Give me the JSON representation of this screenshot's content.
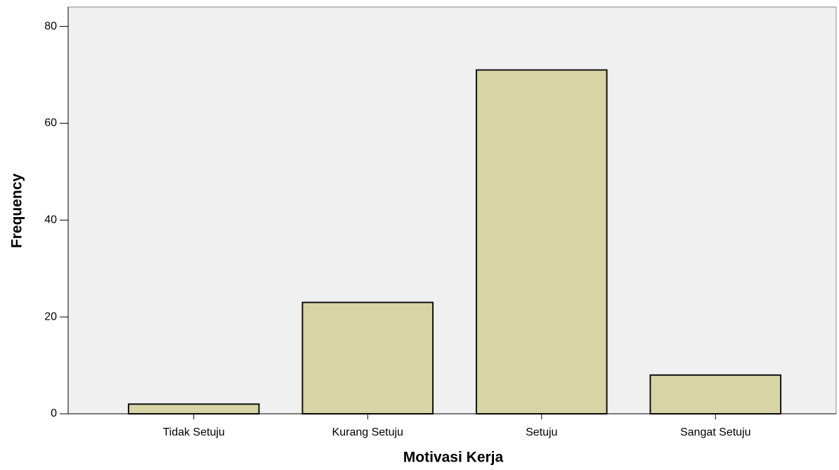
{
  "chart_data": {
    "type": "bar",
    "x_label": "Motivasi Kerja",
    "y_label": "Frequency",
    "categories": [
      "Tidak Setuju",
      "Kurang Setuju",
      "Setuju",
      "Sangat Setuju"
    ],
    "values": [
      2,
      23,
      71,
      8
    ],
    "color": "#d9d4a6",
    "ylim": [
      0,
      84
    ],
    "yticks": [
      0,
      20,
      40,
      60,
      80
    ]
  }
}
